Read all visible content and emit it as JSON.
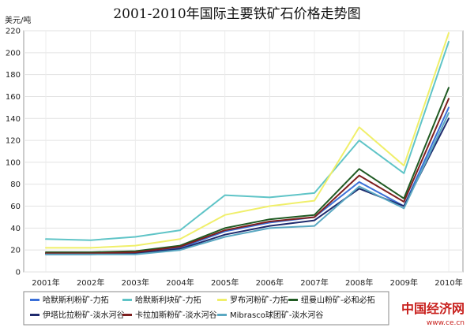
{
  "chart_data": {
    "type": "line",
    "title": "2001-2010年国际主要铁矿石价格走势图",
    "ylabel": "美元/吨",
    "xlabel": "",
    "categories": [
      "2001年",
      "2002年",
      "2003年",
      "2004年",
      "2005年",
      "2006年",
      "2007年",
      "2008年",
      "2009年",
      "2010年"
    ],
    "ylim": [
      0,
      220
    ],
    "yticks": [
      0,
      20,
      40,
      60,
      80,
      100,
      120,
      140,
      160,
      180,
      200,
      220
    ],
    "grid": true,
    "legend_position": "bottom",
    "series": [
      {
        "name": "哈默斯利粉矿-力拓",
        "color": "#3a6fd8",
        "values": [
          17,
          17,
          18,
          22,
          37,
          45,
          50,
          82,
          60,
          150
        ]
      },
      {
        "name": "哈默斯利块矿-力拓",
        "color": "#5fc4c7",
        "values": [
          30,
          29,
          32,
          38,
          70,
          68,
          72,
          120,
          90,
          210
        ]
      },
      {
        "name": "罗布河粉矿-力拓",
        "color": "#f0ef6a",
        "values": [
          22,
          22,
          24,
          30,
          52,
          60,
          65,
          132,
          97,
          218
        ]
      },
      {
        "name": "纽曼山粉矿-必和必拓",
        "color": "#1f5a22",
        "values": [
          18,
          18,
          19,
          24,
          40,
          48,
          52,
          94,
          67,
          168
        ]
      },
      {
        "name": "伊塔比拉粉矿-淡水河谷",
        "color": "#1e2a6d",
        "values": [
          16,
          16,
          17,
          21,
          34,
          42,
          47,
          76,
          60,
          140
        ]
      },
      {
        "name": "卡拉加斯粉矿-淡水河谷",
        "color": "#7e1f1f",
        "values": [
          17,
          17,
          18,
          23,
          38,
          46,
          50,
          88,
          64,
          158
        ]
      },
      {
        "name": "Mibrasco球团矿-淡水河谷",
        "color": "#5aa8c2",
        "values": [
          16,
          16,
          16,
          20,
          32,
          40,
          42,
          78,
          58,
          145
        ]
      }
    ]
  },
  "watermark": {
    "brand": "中国经济网",
    "url": "www.ce.cn"
  }
}
